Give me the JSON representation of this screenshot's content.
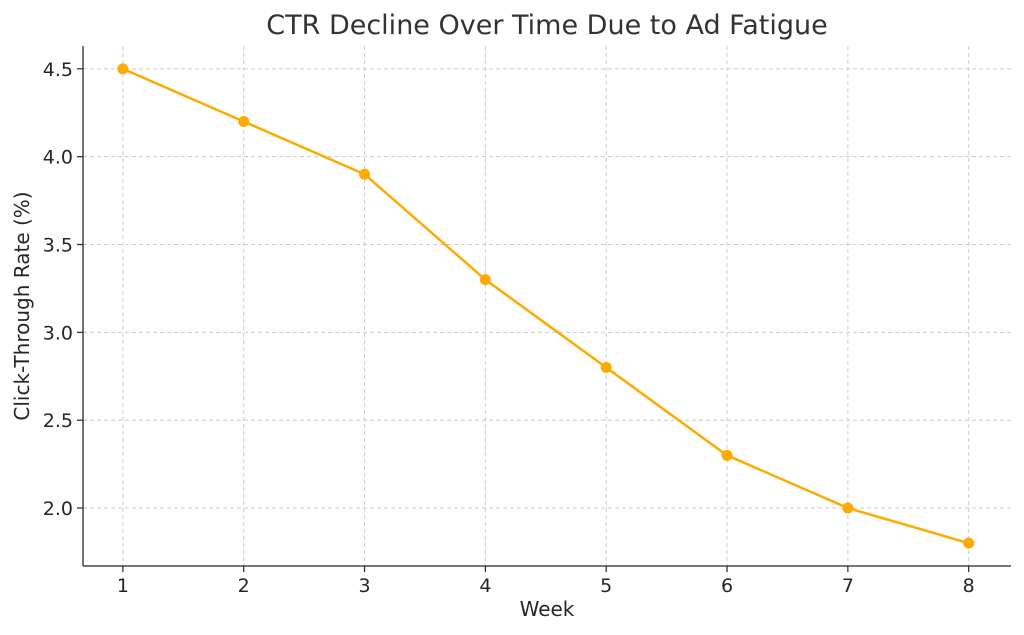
{
  "chart_data": {
    "type": "line",
    "title": "CTR Decline Over Time Due to Ad Fatigue",
    "xlabel": "Week",
    "ylabel": "Click-Through Rate (%)",
    "x": [
      1,
      2,
      3,
      4,
      5,
      6,
      7,
      8
    ],
    "x_ticks": [
      "1",
      "2",
      "3",
      "4",
      "5",
      "6",
      "7",
      "8"
    ],
    "y_ticks": [
      "2.0",
      "2.5",
      "3.0",
      "3.5",
      "4.0",
      "4.5"
    ],
    "xlim": [
      0.67,
      8.35
    ],
    "ylim": [
      1.67,
      4.63
    ],
    "grid": true,
    "series": [
      {
        "color": "#FFAA00",
        "marker": "circle",
        "values": [
          4.5,
          4.2,
          3.9,
          3.3,
          2.8,
          2.3,
          2.0,
          1.8
        ]
      }
    ]
  }
}
